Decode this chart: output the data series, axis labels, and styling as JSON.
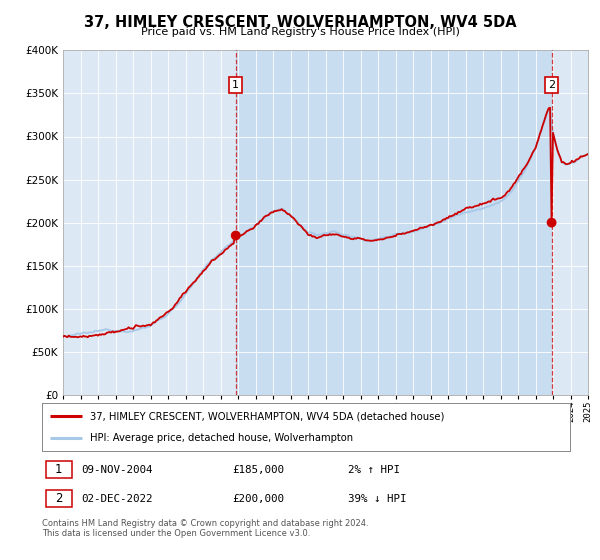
{
  "title": "37, HIMLEY CRESCENT, WOLVERHAMPTON, WV4 5DA",
  "subtitle": "Price paid vs. HM Land Registry's House Price Index (HPI)",
  "legend_line1": "37, HIMLEY CRESCENT, WOLVERHAMPTON, WV4 5DA (detached house)",
  "legend_line2": "HPI: Average price, detached house, Wolverhampton",
  "annotation1_date": "09-NOV-2004",
  "annotation1_price": "£185,000",
  "annotation1_hpi": "2% ↑ HPI",
  "annotation2_date": "02-DEC-2022",
  "annotation2_price": "£200,000",
  "annotation2_hpi": "39% ↓ HPI",
  "footer_line1": "Contains HM Land Registry data © Crown copyright and database right 2024.",
  "footer_line2": "This data is licensed under the Open Government Licence v3.0.",
  "sale1_year": 2004.87,
  "sale1_price": 185000,
  "sale2_year": 2022.92,
  "sale2_price": 200000,
  "hpi_color": "#a8c8e8",
  "property_color": "#cc0000",
  "vline_color": "#cc0000",
  "plot_bg_color": "#dce9f5",
  "shaded_bg_color": "#c8ddf0",
  "ylim": [
    0,
    400000
  ],
  "xlim_start": 1995,
  "xlim_end": 2025,
  "anchors_hpi": [
    [
      1995.0,
      68000
    ],
    [
      1995.5,
      67500
    ],
    [
      1996.0,
      68500
    ],
    [
      1996.5,
      69000
    ],
    [
      1997.0,
      70000
    ],
    [
      1997.5,
      71000
    ],
    [
      1998.0,
      72000
    ],
    [
      1998.5,
      73500
    ],
    [
      1999.0,
      75000
    ],
    [
      1999.5,
      77000
    ],
    [
      2000.0,
      80000
    ],
    [
      2000.5,
      87000
    ],
    [
      2001.0,
      95000
    ],
    [
      2001.5,
      105000
    ],
    [
      2002.0,
      118000
    ],
    [
      2002.5,
      130000
    ],
    [
      2003.0,
      142000
    ],
    [
      2003.5,
      155000
    ],
    [
      2004.0,
      163000
    ],
    [
      2004.5,
      172000
    ],
    [
      2005.0,
      182000
    ],
    [
      2005.5,
      190000
    ],
    [
      2006.0,
      197000
    ],
    [
      2006.5,
      205000
    ],
    [
      2007.0,
      212000
    ],
    [
      2007.5,
      215000
    ],
    [
      2008.0,
      208000
    ],
    [
      2008.5,
      198000
    ],
    [
      2009.0,
      186000
    ],
    [
      2009.5,
      182000
    ],
    [
      2010.0,
      186000
    ],
    [
      2010.5,
      187000
    ],
    [
      2011.0,
      184000
    ],
    [
      2011.5,
      181000
    ],
    [
      2012.0,
      179000
    ],
    [
      2012.5,
      178000
    ],
    [
      2013.0,
      179000
    ],
    [
      2013.5,
      181000
    ],
    [
      2014.0,
      184000
    ],
    [
      2014.5,
      187000
    ],
    [
      2015.0,
      190000
    ],
    [
      2015.5,
      193000
    ],
    [
      2016.0,
      197000
    ],
    [
      2016.5,
      201000
    ],
    [
      2017.0,
      206000
    ],
    [
      2017.5,
      210000
    ],
    [
      2018.0,
      215000
    ],
    [
      2018.5,
      218000
    ],
    [
      2019.0,
      222000
    ],
    [
      2019.5,
      226000
    ],
    [
      2020.0,
      228000
    ],
    [
      2020.5,
      237000
    ],
    [
      2021.0,
      252000
    ],
    [
      2021.5,
      268000
    ],
    [
      2022.0,
      288000
    ],
    [
      2022.33,
      308000
    ],
    [
      2022.67,
      330000
    ],
    [
      2022.83,
      335000
    ],
    [
      2023.0,
      305000
    ],
    [
      2023.25,
      285000
    ],
    [
      2023.5,
      272000
    ],
    [
      2023.75,
      268000
    ],
    [
      2024.0,
      270000
    ],
    [
      2024.25,
      272000
    ],
    [
      2024.5,
      275000
    ],
    [
      2024.75,
      278000
    ],
    [
      2025.0,
      280000
    ]
  ]
}
